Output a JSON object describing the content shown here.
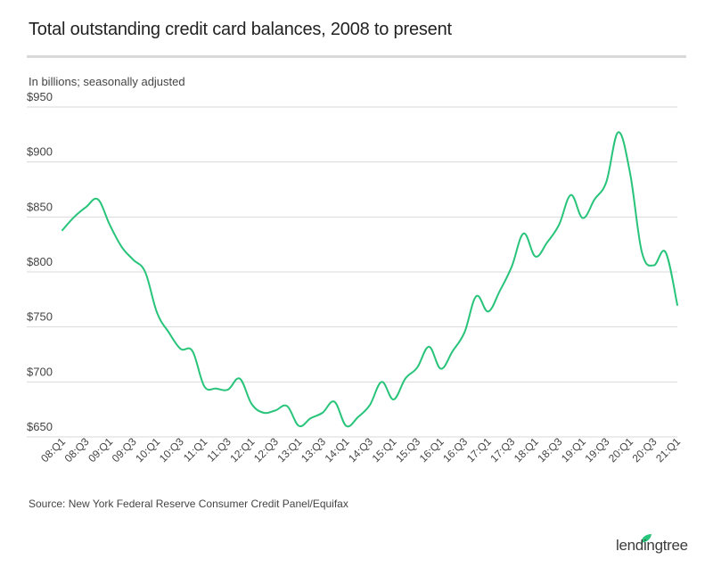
{
  "title": "Total outstanding credit card balances, 2008 to present",
  "subtitle": "In billions; seasonally adjusted",
  "source": "Source: New York Federal Reserve Consumer Credit Panel/Equifax",
  "brand": "lendingtree",
  "colors": {
    "line": "#27c47a",
    "grid": "#d9d9d9",
    "text": "#333333"
  },
  "chart_data": {
    "type": "line",
    "title": "Total outstanding credit card balances, 2008 to present",
    "ylabel": "In billions; seasonally adjusted",
    "ylim": [
      650,
      950
    ],
    "y_ticks": [
      650,
      700,
      750,
      800,
      850,
      900,
      950
    ],
    "y_tick_labels": [
      "$650",
      "$700",
      "$750",
      "$800",
      "$850",
      "$900",
      "$950"
    ],
    "x_tick_labels": [
      "08:Q1",
      "08:Q3",
      "09:Q1",
      "09:Q3",
      "10:Q1",
      "10:Q3",
      "11:Q1",
      "11:Q3",
      "12:Q1",
      "12:Q3",
      "13:Q1",
      "13:Q3",
      "14:Q1",
      "14:Q3",
      "15:Q1",
      "15:Q3",
      "16:Q1",
      "16:Q3",
      "17:Q1",
      "17:Q3",
      "18:Q1",
      "18:Q3",
      "19:Q1",
      "19:Q3",
      "20:Q1",
      "20:Q3",
      "21:Q1"
    ],
    "grid": true,
    "series": [
      {
        "x": [
          "08:Q1",
          "08:Q2",
          "08:Q3",
          "08:Q4",
          "09:Q1",
          "09:Q2",
          "09:Q3",
          "09:Q4",
          "10:Q1",
          "10:Q2",
          "10:Q3",
          "10:Q4",
          "11:Q1",
          "11:Q2",
          "11:Q3",
          "11:Q4",
          "12:Q1",
          "12:Q2",
          "12:Q3",
          "12:Q4",
          "13:Q1",
          "13:Q2",
          "13:Q3",
          "13:Q4",
          "14:Q1",
          "14:Q2",
          "14:Q3",
          "14:Q4",
          "15:Q1",
          "15:Q2",
          "15:Q3",
          "15:Q4",
          "16:Q1",
          "16:Q2",
          "16:Q3",
          "16:Q4",
          "17:Q1",
          "17:Q2",
          "17:Q3",
          "17:Q4",
          "18:Q1",
          "18:Q2",
          "18:Q3",
          "18:Q4",
          "19:Q1",
          "19:Q2",
          "19:Q3",
          "19:Q4",
          "20:Q1",
          "20:Q2",
          "20:Q3",
          "20:Q4",
          "21:Q1"
        ],
        "values": [
          838,
          850,
          859,
          866,
          843,
          823,
          811,
          800,
          763,
          745,
          730,
          728,
          696,
          694,
          693,
          703,
          680,
          672,
          674,
          678,
          660,
          667,
          672,
          682,
          660,
          668,
          679,
          700,
          684,
          703,
          713,
          732,
          712,
          728,
          745,
          778,
          764,
          783,
          805,
          835,
          814,
          827,
          843,
          870,
          849,
          866,
          882,
          927,
          890,
          818,
          806,
          818,
          770
        ]
      }
    ]
  }
}
